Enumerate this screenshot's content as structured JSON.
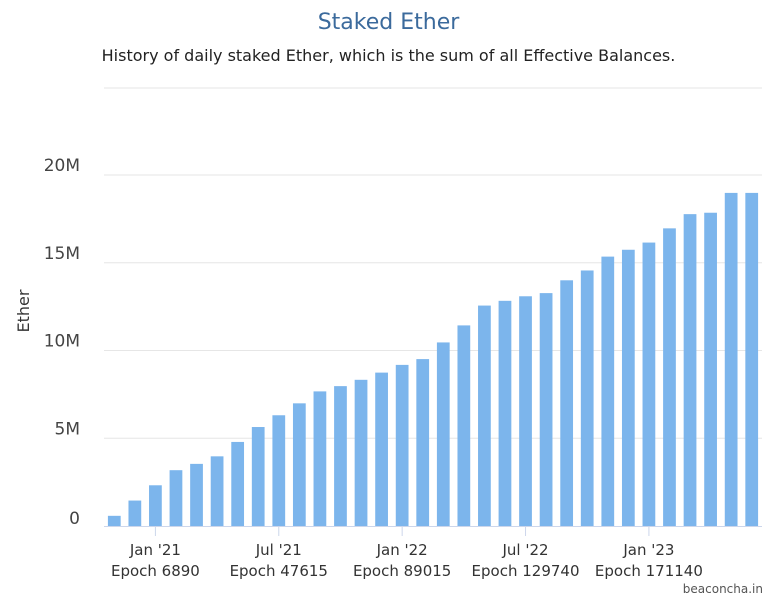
{
  "chart_data": {
    "type": "bar",
    "title": "Staked Ether",
    "subtitle": "History of daily staked Ether, which is the sum of all Effective Balances.",
    "ylabel": "Ether",
    "xlabel": "",
    "ylim": [
      0,
      20000000
    ],
    "y_ticks": [
      {
        "value": 0,
        "label": "0"
      },
      {
        "value": 5000000,
        "label": "5M"
      },
      {
        "value": 10000000,
        "label": "10M"
      },
      {
        "value": 15000000,
        "label": "15M"
      },
      {
        "value": 20000000,
        "label": "20M"
      }
    ],
    "x_ticks": [
      {
        "bar_index": 2,
        "label": "Jan '21",
        "epoch": "Epoch 6890"
      },
      {
        "bar_index": 8,
        "label": "Jul '21",
        "epoch": "Epoch 47615"
      },
      {
        "bar_index": 14,
        "label": "Jan '22",
        "epoch": "Epoch 89015"
      },
      {
        "bar_index": 20,
        "label": "Jul '22",
        "epoch": "Epoch 129740"
      },
      {
        "bar_index": 26,
        "label": "Jan '23",
        "epoch": "Epoch 171140"
      }
    ],
    "grid": true,
    "legend": "none",
    "bar_color": "#7cb5ec",
    "values": [
      580000,
      1450000,
      2320000,
      3180000,
      3540000,
      3970000,
      4790000,
      5640000,
      6310000,
      6990000,
      7670000,
      7970000,
      8330000,
      8740000,
      9180000,
      9510000,
      10460000,
      11430000,
      12560000,
      12830000,
      13090000,
      13270000,
      14000000,
      14560000,
      15350000,
      15740000,
      16150000,
      16960000,
      17770000,
      17850000,
      18980000,
      18980000
    ]
  },
  "watermark": "beaconcha.in"
}
